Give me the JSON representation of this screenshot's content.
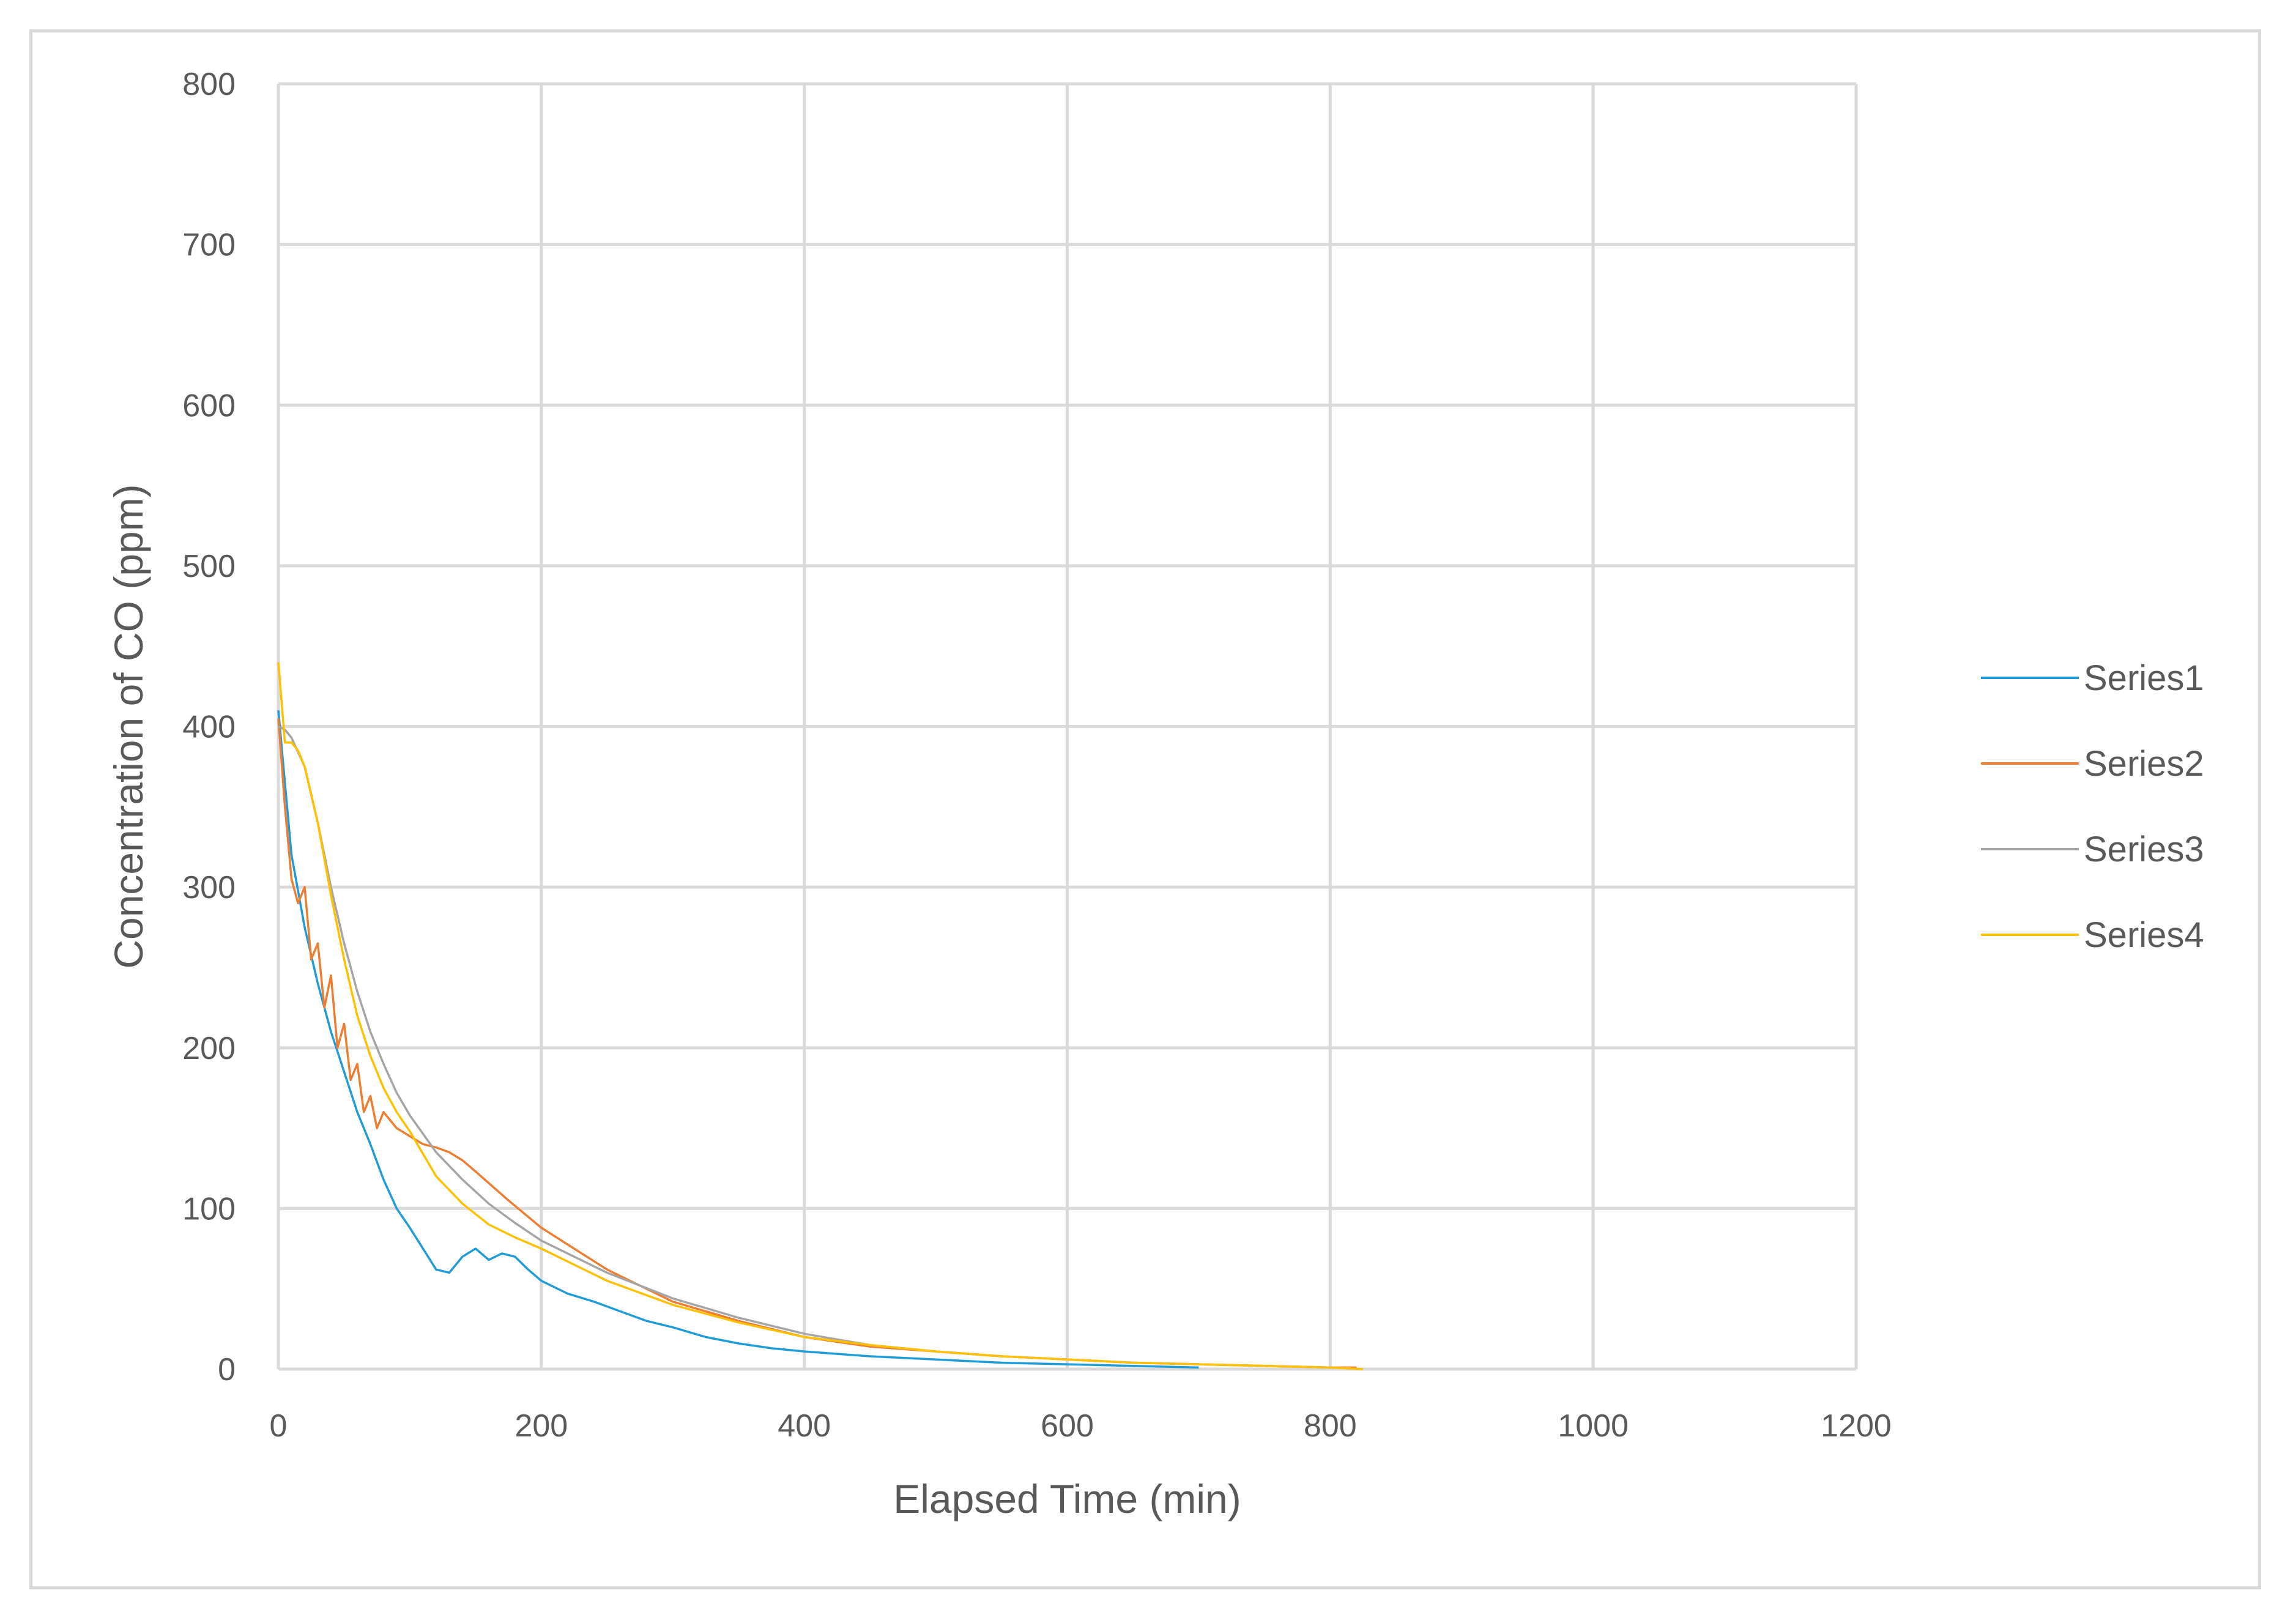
{
  "chart_data": {
    "type": "line",
    "title": "",
    "xlabel": "Elapsed Time (min)",
    "ylabel": "Concentration of CO (ppm)",
    "xlim": [
      0,
      1200
    ],
    "ylim": [
      0,
      800
    ],
    "x_ticks": [
      "0",
      "200",
      "400",
      "600",
      "800",
      "1000",
      "1200"
    ],
    "y_ticks": [
      "0",
      "100",
      "200",
      "300",
      "400",
      "500",
      "600",
      "700",
      "800"
    ],
    "grid": true,
    "legend_position": "right",
    "series": [
      {
        "name": "Series1",
        "color": "#1f9bd7",
        "x": [
          0,
          5,
          10,
          20,
          30,
          40,
          50,
          60,
          70,
          80,
          90,
          100,
          110,
          120,
          130,
          140,
          150,
          160,
          170,
          180,
          190,
          200,
          220,
          240,
          260,
          280,
          300,
          325,
          350,
          375,
          400,
          450,
          500,
          550,
          600,
          650,
          700
        ],
        "y": [
          410,
          365,
          320,
          275,
          240,
          210,
          185,
          160,
          140,
          118,
          100,
          88,
          75,
          62,
          60,
          70,
          75,
          68,
          72,
          70,
          62,
          55,
          47,
          42,
          36,
          30,
          26,
          20,
          16,
          13,
          11,
          8,
          6,
          4,
          3,
          2,
          1
        ]
      },
      {
        "name": "Series2",
        "color": "#ed7d31",
        "x": [
          0,
          5,
          10,
          15,
          20,
          25,
          30,
          35,
          40,
          45,
          50,
          55,
          60,
          65,
          70,
          75,
          80,
          90,
          100,
          110,
          120,
          130,
          140,
          150,
          175,
          200,
          250,
          300,
          350,
          400,
          450,
          500,
          550,
          600,
          650,
          700,
          750,
          800,
          820
        ],
        "y": [
          405,
          350,
          305,
          290,
          300,
          255,
          265,
          225,
          245,
          200,
          215,
          180,
          190,
          160,
          170,
          150,
          160,
          150,
          145,
          140,
          138,
          135,
          130,
          123,
          105,
          88,
          62,
          42,
          30,
          20,
          14,
          11,
          8,
          6,
          4,
          3,
          2,
          1,
          1
        ]
      },
      {
        "name": "Series3",
        "color": "#a5a5a5",
        "x": [
          0,
          5,
          10,
          20,
          30,
          40,
          50,
          60,
          70,
          80,
          90,
          100,
          120,
          140,
          160,
          180,
          200,
          250,
          300,
          350,
          400,
          450,
          500,
          550,
          600,
          650,
          700,
          750,
          800
        ],
        "y": [
          400,
          398,
          393,
          375,
          340,
          300,
          265,
          235,
          210,
          190,
          172,
          158,
          135,
          118,
          103,
          91,
          80,
          60,
          44,
          32,
          22,
          15,
          11,
          8,
          6,
          4,
          3,
          2,
          1
        ]
      },
      {
        "name": "Series4",
        "color": "#ffc000",
        "x": [
          0,
          5,
          10,
          15,
          20,
          30,
          40,
          50,
          60,
          70,
          80,
          90,
          100,
          120,
          140,
          160,
          180,
          200,
          250,
          300,
          350,
          400,
          450,
          500,
          550,
          600,
          650,
          700,
          750,
          800,
          825
        ],
        "y": [
          440,
          390,
          390,
          385,
          375,
          340,
          295,
          255,
          220,
          195,
          175,
          160,
          148,
          120,
          103,
          90,
          82,
          75,
          55,
          40,
          29,
          20,
          15,
          11,
          8,
          6,
          4,
          3,
          2,
          1,
          0
        ]
      }
    ]
  }
}
